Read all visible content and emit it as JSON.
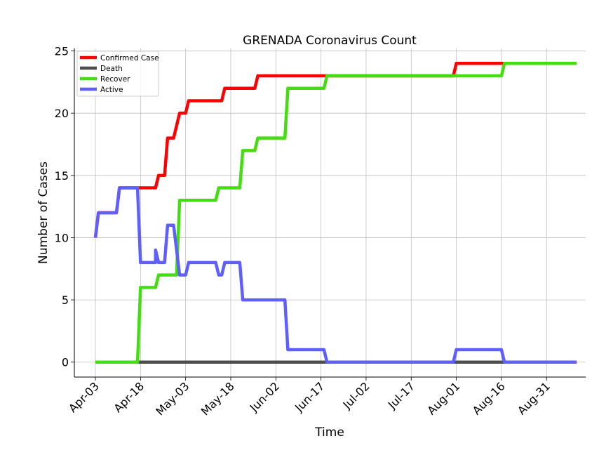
{
  "chart_data": {
    "type": "line",
    "title": "GRENADA Coronavirus Count",
    "xlabel": "Time",
    "ylabel": "Number of Cases",
    "ylim": [
      -1.2,
      25.2
    ],
    "yticks": [
      0,
      5,
      10,
      15,
      20,
      25
    ],
    "xlim": [
      "2020-03-27",
      "2020-09-13"
    ],
    "xticks": [
      "2020-04-03",
      "2020-04-18",
      "2020-05-03",
      "2020-05-18",
      "2020-06-02",
      "2020-06-17",
      "2020-07-02",
      "2020-07-17",
      "2020-08-01",
      "2020-08-16",
      "2020-08-31"
    ],
    "xtick_labels": [
      "Apr-03",
      "Apr-18",
      "May-03",
      "May-18",
      "Jun-02",
      "Jun-17",
      "Jul-02",
      "Jul-17",
      "Aug-01",
      "Aug-16",
      "Aug-31"
    ],
    "grid": true,
    "legend_position": "top-left",
    "series": [
      {
        "name": "Confirmed Case",
        "color": "#ff0000",
        "points": [
          [
            "2020-04-03",
            10
          ],
          [
            "2020-04-04",
            12
          ],
          [
            "2020-04-10",
            12
          ],
          [
            "2020-04-11",
            14
          ],
          [
            "2020-04-18",
            14
          ],
          [
            "2020-04-19",
            14
          ],
          [
            "2020-04-23",
            14
          ],
          [
            "2020-04-24",
            15
          ],
          [
            "2020-04-26",
            15
          ],
          [
            "2020-04-27",
            18
          ],
          [
            "2020-04-29",
            18
          ],
          [
            "2020-04-30",
            19
          ],
          [
            "2020-05-01",
            20
          ],
          [
            "2020-05-03",
            20
          ],
          [
            "2020-05-04",
            21
          ],
          [
            "2020-05-15",
            21
          ],
          [
            "2020-05-16",
            22
          ],
          [
            "2020-05-26",
            22
          ],
          [
            "2020-05-27",
            23
          ],
          [
            "2020-06-17",
            23
          ],
          [
            "2020-07-31",
            23
          ],
          [
            "2020-08-01",
            24
          ],
          [
            "2020-08-16",
            24
          ],
          [
            "2020-09-10",
            24
          ]
        ]
      },
      {
        "name": "Death",
        "color": "#4d4d4d",
        "points": [
          [
            "2020-04-03",
            0
          ],
          [
            "2020-09-10",
            0
          ]
        ]
      },
      {
        "name": "Recover",
        "color": "#44dd11",
        "points": [
          [
            "2020-04-03",
            0
          ],
          [
            "2020-04-17",
            0
          ],
          [
            "2020-04-18",
            6
          ],
          [
            "2020-04-23",
            6
          ],
          [
            "2020-04-24",
            7
          ],
          [
            "2020-04-30",
            7
          ],
          [
            "2020-05-01",
            13
          ],
          [
            "2020-05-13",
            13
          ],
          [
            "2020-05-14",
            14
          ],
          [
            "2020-05-21",
            14
          ],
          [
            "2020-05-22",
            17
          ],
          [
            "2020-05-26",
            17
          ],
          [
            "2020-05-27",
            18
          ],
          [
            "2020-06-05",
            18
          ],
          [
            "2020-06-06",
            22
          ],
          [
            "2020-06-18",
            22
          ],
          [
            "2020-06-19",
            23
          ],
          [
            "2020-08-16",
            23
          ],
          [
            "2020-08-17",
            24
          ],
          [
            "2020-09-10",
            24
          ]
        ]
      },
      {
        "name": "Active",
        "color": "#5f5fff",
        "points": [
          [
            "2020-04-03",
            10
          ],
          [
            "2020-04-04",
            12
          ],
          [
            "2020-04-10",
            12
          ],
          [
            "2020-04-11",
            14
          ],
          [
            "2020-04-17",
            14
          ],
          [
            "2020-04-18",
            8
          ],
          [
            "2020-04-23",
            8
          ],
          [
            "2020-04-23",
            9
          ],
          [
            "2020-04-24",
            8
          ],
          [
            "2020-04-26",
            8
          ],
          [
            "2020-04-27",
            11
          ],
          [
            "2020-04-29",
            11
          ],
          [
            "2020-04-30",
            9
          ],
          [
            "2020-05-01",
            7
          ],
          [
            "2020-05-03",
            7
          ],
          [
            "2020-05-04",
            8
          ],
          [
            "2020-05-13",
            8
          ],
          [
            "2020-05-14",
            7
          ],
          [
            "2020-05-15",
            7
          ],
          [
            "2020-05-16",
            8
          ],
          [
            "2020-05-21",
            8
          ],
          [
            "2020-05-22",
            5
          ],
          [
            "2020-06-05",
            5
          ],
          [
            "2020-06-06",
            1
          ],
          [
            "2020-06-18",
            1
          ],
          [
            "2020-06-19",
            0
          ],
          [
            "2020-07-31",
            0
          ],
          [
            "2020-08-01",
            1
          ],
          [
            "2020-08-16",
            1
          ],
          [
            "2020-08-17",
            0
          ],
          [
            "2020-09-10",
            0
          ]
        ]
      }
    ]
  }
}
